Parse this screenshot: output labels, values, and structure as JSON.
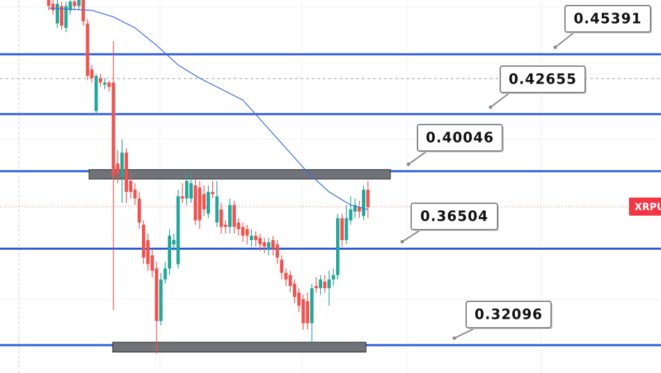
{
  "chart_data": {
    "type": "candlestick",
    "symbol": "XRPU",
    "ylim": [
      0.30824,
      0.47872
    ],
    "open": [
      0.479,
      0.477,
      0.468,
      0.476,
      0.466,
      0.474,
      0.478,
      0.476,
      0.479,
      0.468,
      0.447,
      0.428,
      0.443,
      0.44,
      0.441,
      0.441,
      0.404,
      0.398,
      0.409,
      0.396,
      0.392,
      0.388,
      0.376,
      0.369,
      0.362,
      0.356,
      0.332,
      0.351,
      0.356,
      0.367,
      0.358,
      0.389,
      0.388,
      0.388,
      0.394,
      0.393,
      0.39,
      0.381,
      0.391,
      0.377,
      0.383,
      0.376,
      0.375,
      0.385,
      0.377,
      0.375,
      0.374,
      0.369,
      0.371,
      0.37,
      0.368,
      0.365,
      0.369,
      0.367,
      0.36,
      0.354,
      0.353,
      0.349,
      0.345,
      0.342,
      0.341,
      0.331,
      0.348,
      0.347,
      0.35,
      0.347,
      0.351,
      0.353,
      0.379,
      0.369,
      0.378,
      0.382,
      0.384,
      0.38,
      0.392
    ],
    "high": [
      0.479,
      0.479,
      0.479,
      0.478,
      0.478,
      0.479,
      0.479,
      0.479,
      0.479,
      0.47,
      0.449,
      0.445,
      0.445,
      0.443,
      0.442,
      0.46,
      0.41,
      0.415,
      0.411,
      0.399,
      0.395,
      0.391,
      0.378,
      0.372,
      0.365,
      0.359,
      0.354,
      0.359,
      0.374,
      0.372,
      0.392,
      0.395,
      0.399,
      0.4,
      0.397,
      0.396,
      0.394,
      0.394,
      0.396,
      0.396,
      0.386,
      0.378,
      0.388,
      0.387,
      0.379,
      0.377,
      0.376,
      0.374,
      0.373,
      0.372,
      0.37,
      0.37,
      0.371,
      0.369,
      0.362,
      0.356,
      0.355,
      0.351,
      0.347,
      0.344,
      0.345,
      0.349,
      0.352,
      0.353,
      0.353,
      0.355,
      0.356,
      0.381,
      0.381,
      0.385,
      0.389,
      0.388,
      0.387,
      0.394,
      0.396
    ],
    "low": [
      0.474,
      0.472,
      0.466,
      0.465,
      0.464,
      0.472,
      0.474,
      0.474,
      0.467,
      0.442,
      0.441,
      0.426,
      0.439,
      0.438,
      0.437,
      0.337,
      0.395,
      0.386,
      0.386,
      0.388,
      0.385,
      0.374,
      0.358,
      0.355,
      0.352,
      0.317,
      0.33,
      0.349,
      0.353,
      0.364,
      0.356,
      0.386,
      0.385,
      0.386,
      0.376,
      0.374,
      0.38,
      0.379,
      0.388,
      0.375,
      0.372,
      0.372,
      0.372,
      0.372,
      0.371,
      0.368,
      0.367,
      0.366,
      0.366,
      0.364,
      0.363,
      0.362,
      0.362,
      0.358,
      0.351,
      0.348,
      0.345,
      0.34,
      0.336,
      0.328,
      0.328,
      0.322,
      0.345,
      0.344,
      0.345,
      0.339,
      0.348,
      0.351,
      0.366,
      0.367,
      0.376,
      0.379,
      0.379,
      0.378,
      0.379
    ],
    "close": [
      0.476,
      0.474,
      0.477,
      0.467,
      0.476,
      0.478,
      0.476,
      0.479,
      0.469,
      0.444,
      0.443,
      0.444,
      0.441,
      0.441,
      0.439,
      0.398,
      0.399,
      0.409,
      0.391,
      0.391,
      0.388,
      0.377,
      0.361,
      0.358,
      0.355,
      0.332,
      0.351,
      0.356,
      0.371,
      0.369,
      0.389,
      0.388,
      0.396,
      0.395,
      0.378,
      0.378,
      0.383,
      0.391,
      0.39,
      0.389,
      0.375,
      0.375,
      0.385,
      0.375,
      0.374,
      0.371,
      0.371,
      0.371,
      0.369,
      0.367,
      0.366,
      0.368,
      0.365,
      0.361,
      0.354,
      0.351,
      0.348,
      0.343,
      0.339,
      0.331,
      0.331,
      0.347,
      0.347,
      0.351,
      0.347,
      0.351,
      0.353,
      0.379,
      0.369,
      0.379,
      0.383,
      0.385,
      0.382,
      0.392,
      0.384
    ],
    "up_color": "#26a69a",
    "down_color": "#ef5350",
    "moving_average": {
      "color": "#3d6fd9",
      "x": [
        0,
        10,
        15,
        20,
        25,
        30,
        35,
        40,
        45,
        50,
        55,
        60,
        65,
        70,
        74
      ],
      "values": [
        0.475,
        0.474,
        0.471,
        0.466,
        0.458,
        0.449,
        0.443,
        0.438,
        0.433,
        0.422,
        0.411,
        0.4,
        0.391,
        0.385,
        0.383
      ]
    },
    "levels": {
      "color": "#2c5bd8",
      "values": [
        0.45391,
        0.42655,
        0.40046,
        0.36504,
        0.32096
      ]
    },
    "last_price": 0.3843,
    "reference_line": 0.4428,
    "zones": [
      [
        0.4012,
        0.3969
      ],
      [
        0.3223,
        0.3178
      ]
    ]
  }
}
